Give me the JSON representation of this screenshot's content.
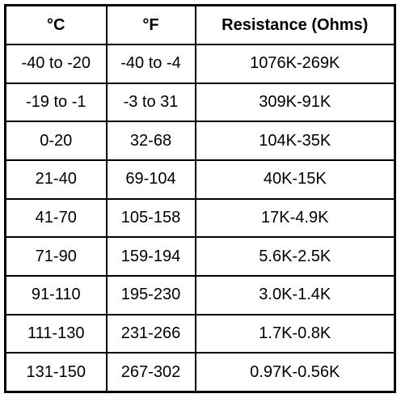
{
  "table": {
    "header": [
      "°C",
      "°F",
      "Resistance (Ohms)"
    ],
    "rows": [
      [
        "-40 to -20",
        "-40 to -4",
        "1076K-269K"
      ],
      [
        "-19 to -1",
        "-3 to 31",
        "309K-91K"
      ],
      [
        "0-20",
        "32-68",
        "104K-35K"
      ],
      [
        "21-40",
        "69-104",
        "40K-15K"
      ],
      [
        "41-70",
        "105-158",
        "17K-4.9K"
      ],
      [
        "71-90",
        "159-194",
        "5.6K-2.5K"
      ],
      [
        "91-110",
        "195-230",
        "3.0K-1.4K"
      ],
      [
        "111-130",
        "231-266",
        "1.7K-0.8K"
      ],
      [
        "131-150",
        "267-302",
        "0.97K-0.56K"
      ]
    ]
  }
}
